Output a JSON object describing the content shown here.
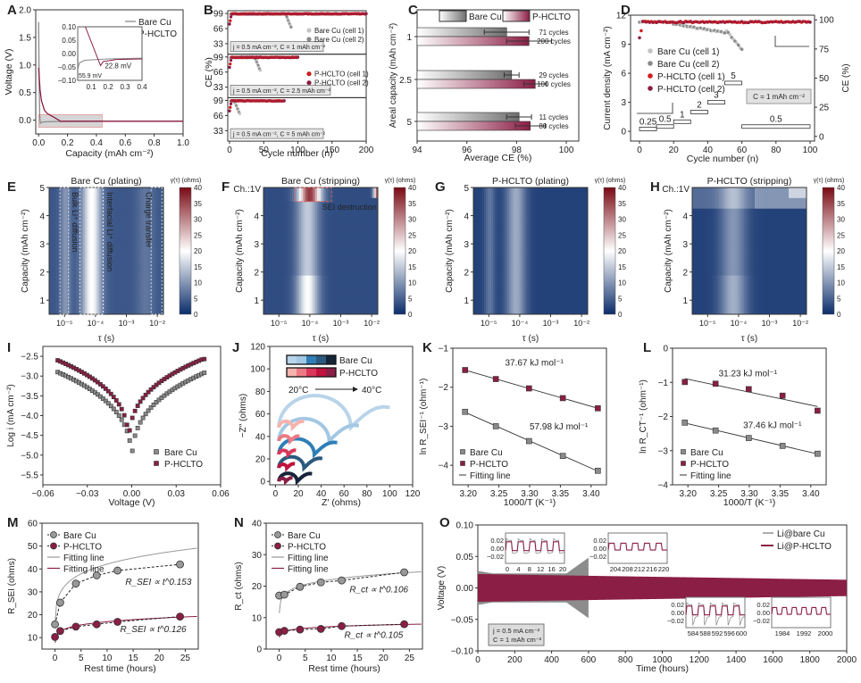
{
  "colors": {
    "bare": "#8a8a8a",
    "bare_light": "#c4c4c4",
    "hclto": "#8b1e45",
    "hclto_red": "#d01c1c",
    "axis": "#333333",
    "heat_low": "#0b2d6b",
    "heat_mid": "#ffffff",
    "heat_high": "#7a0a14"
  },
  "chart_data": [
    {
      "panel": "A",
      "type": "line",
      "xlabel": "Capacity (mAh cm⁻²)",
      "ylabel": "Voltage (V)",
      "xlim": [
        0,
        1.0
      ],
      "ylim": [
        -0.25,
        2.0
      ],
      "xticks": [
        "0.0",
        "0.2",
        "0.4",
        "0.6",
        "0.8",
        "1.0"
      ],
      "yticks": [
        "0.0",
        "0.5",
        "1.0",
        "1.5",
        "2.0"
      ],
      "legend": [
        "Bare Cu",
        "P-HCLTO"
      ],
      "series": [
        {
          "name": "Bare Cu",
          "x": [
            0,
            0.004,
            0.008,
            0.012,
            0.02,
            0.05,
            0.1,
            0.2,
            0.4,
            0.6,
            1.0
          ],
          "y": [
            1.78,
            0.6,
            0.05,
            -0.056,
            -0.04,
            -0.03,
            -0.025,
            -0.022,
            -0.02,
            -0.02,
            -0.02
          ]
        },
        {
          "name": "P-HCLTO",
          "x": [
            0,
            0.01,
            0.02,
            0.04,
            0.06,
            0.08,
            0.1,
            0.12,
            0.155,
            0.17,
            0.2,
            0.4,
            0.6,
            1.0
          ],
          "y": [
            0.95,
            0.55,
            0.35,
            0.18,
            0.12,
            0.09,
            0.06,
            0.03,
            -0.023,
            -0.02,
            -0.02,
            -0.02,
            -0.02,
            -0.02
          ]
        }
      ],
      "inset": {
        "xlim": [
          0.02,
          0.4
        ],
        "ylim": [
          -0.1,
          0.1
        ],
        "xticks": [
          "0.1",
          "0.2",
          "0.3",
          "0.4"
        ],
        "yticks": [
          "0.10",
          "0.05",
          "0.00",
          "−0.05",
          "−0.10"
        ],
        "annotations": [
          {
            "text": "22.8 mV",
            "series": "P-HCLTO"
          },
          {
            "text": "55.9 mV",
            "series": "Bare Cu"
          }
        ]
      }
    },
    {
      "panel": "B",
      "type": "scatter",
      "xlabel": "Cycle number (n)",
      "ylabel": "CE (%)",
      "xlim": [
        0,
        200
      ],
      "xticks": [
        "0",
        "50",
        "100",
        "150",
        "200"
      ],
      "yticks": [
        "33",
        "66",
        "99"
      ],
      "legend_top": [
        "Bare Cu (cell 1)",
        "Bare Cu (cell 2)"
      ],
      "legend_mid": [
        "P-HCLTO (cell 1)",
        "P-HCLTO (cell 2)"
      ],
      "subpanels": [
        {
          "condition": "j = 0.5 mA cm⁻², C = 1 mAh cm⁻²",
          "bare_end": 90,
          "hclto_end": 200
        },
        {
          "condition": "j = 0.5 mA cm⁻², C = 2.5 mAh cm⁻²",
          "bare_end": 45,
          "hclto_end": 100
        },
        {
          "condition": "j = 0.5 mA cm⁻², C = 5 mAh cm⁻²",
          "bare_end": 15,
          "hclto_end": 80
        }
      ]
    },
    {
      "panel": "C",
      "type": "bar",
      "xlabel": "Average CE (%)",
      "ylabel": "Areal capacity (mAh cm⁻²)",
      "xlim": [
        94,
        100.5
      ],
      "xticks": [
        "94",
        "96",
        "98",
        "100"
      ],
      "categories": [
        "1",
        "2.5",
        "5"
      ],
      "legend": [
        "Bare Cu",
        "P-HCLTO"
      ],
      "series": [
        {
          "name": "Bare Cu",
          "values": [
            97.6,
            97.8,
            98.1
          ],
          "errors": [
            0.9,
            0.3,
            0.5
          ],
          "labels": [
            "71 cycles",
            "29 cycles",
            "11 cycles"
          ]
        },
        {
          "name": "P-HCLTO",
          "values": [
            98.5,
            98.75,
            98.55
          ],
          "errors": [
            0.9,
            0.45,
            0.6
          ],
          "labels": [
            "200 cycles",
            "100 cycles",
            "80 cycles"
          ]
        }
      ]
    },
    {
      "panel": "D",
      "type": "line",
      "xlabel": "Cycle number (n)",
      "ylabel": "Current density (mA cm⁻²)",
      "y2label": "CE (%)",
      "xlim": [
        0,
        100
      ],
      "ylim": [
        -1,
        12
      ],
      "y2lim": [
        0,
        104
      ],
      "xticks": [
        "0",
        "20",
        "40",
        "60",
        "80",
        "100"
      ],
      "yticks": [
        "0",
        "3",
        "6",
        "9",
        "12"
      ],
      "y2ticks": [
        "0",
        "25",
        "50",
        "75",
        "100"
      ],
      "legend": [
        "Bare Cu (cell 1)",
        "Bare Cu (cell 2)",
        "P-HCLTO (cell 1)",
        "P-HCLTO (cell 2)"
      ],
      "annotation": "C = 1 mAh cm⁻²",
      "steps": [
        {
          "from": 0,
          "to": 10,
          "value": 0.25
        },
        {
          "from": 10,
          "to": 20,
          "value": 0.5
        },
        {
          "from": 20,
          "to": 30,
          "value": 1
        },
        {
          "from": 30,
          "to": 40,
          "value": 2
        },
        {
          "from": 40,
          "to": 50,
          "value": 3
        },
        {
          "from": 50,
          "to": 60,
          "value": 5
        },
        {
          "from": 60,
          "to": 100,
          "value": 0.5
        }
      ],
      "step_labels": [
        "0.25",
        "0.5",
        "1",
        "2",
        "3",
        "5",
        "0.5"
      ]
    },
    {
      "panel": "E",
      "type": "heatmap",
      "title": "Bare Cu (plating)",
      "xlabel": "τ (s)",
      "ylabel": "Capacity (mAh cm⁻²)",
      "xticks": [
        "10⁻⁵",
        "10⁻⁴",
        "10⁻³",
        "10⁻²"
      ],
      "yticks": [
        "1",
        "2",
        "3",
        "4",
        "5"
      ],
      "colorbar": {
        "label": "γ(τ) (ohms)",
        "ticks": [
          "0",
          "5",
          "10",
          "15",
          "20",
          "25",
          "30",
          "35",
          "40"
        ]
      },
      "annotations": [
        "Bulk Li⁺ diffusion",
        "Interfacial Li⁺ diffusion",
        "Charge transfer"
      ],
      "peaks": [
        {
          "logtau": -4.15,
          "value": 20
        }
      ]
    },
    {
      "panel": "F",
      "type": "heatmap",
      "title": "Bare Cu (stripping)",
      "corner": "Ch.:1V",
      "xlabel": "τ (s)",
      "ylabel": "Capacity (mAh cm⁻²)",
      "xticks": [
        "10⁻⁵",
        "10⁻⁴",
        "10⁻³",
        "10⁻²"
      ],
      "yticks": [
        "1",
        "2",
        "3",
        "4"
      ],
      "colorbar": {
        "label": "γ(τ) (ohms)",
        "ticks": [
          "0",
          "5",
          "10",
          "15",
          "20",
          "25",
          "30",
          "35",
          "40"
        ]
      },
      "annotations": [
        "SEI destruction"
      ]
    },
    {
      "panel": "G",
      "type": "heatmap",
      "title": "P-HCLTO (plating)",
      "xlabel": "τ (s)",
      "ylabel": "Capacity (mAh cm⁻²)",
      "xticks": [
        "10⁻⁵",
        "10⁻⁴",
        "10⁻³",
        "10⁻²"
      ],
      "yticks": [
        "1",
        "2",
        "3",
        "4",
        "5"
      ],
      "colorbar": {
        "label": "γ(τ) (ohms)",
        "ticks": [
          "0",
          "5",
          "10",
          "15",
          "20",
          "25",
          "30",
          "35",
          "40"
        ]
      }
    },
    {
      "panel": "H",
      "type": "heatmap",
      "title": "P-HCLTO (stripping)",
      "corner": "Ch.:1V",
      "xlabel": "τ (s)",
      "ylabel": "Capacity (mAh cm⁻²)",
      "xticks": [
        "10⁻⁵",
        "10⁻⁴",
        "10⁻³",
        "10⁻²"
      ],
      "yticks": [
        "1",
        "2",
        "3",
        "4"
      ],
      "colorbar": {
        "label": "γ(τ) (ohms)",
        "ticks": [
          "0",
          "5",
          "10",
          "15",
          "20",
          "25",
          "30",
          "35",
          "40"
        ]
      }
    },
    {
      "panel": "I",
      "type": "scatter",
      "xlabel": "Voltage (V)",
      "ylabel": "Log i (mA cm⁻²)",
      "xlim": [
        -0.06,
        0.06
      ],
      "ylim": [
        -5.75,
        -2.25
      ],
      "xticks": [
        "−0.06",
        "−0.03",
        "0.00",
        "0.03",
        "0.06"
      ],
      "yticks": [
        "−2.5",
        "−3.0",
        "−3.5",
        "−4.0",
        "−4.5",
        "−5.0",
        "−5.5"
      ],
      "legend": [
        "Bare Cu",
        "P-HCLTO"
      ],
      "series": [
        {
          "name": "Bare Cu",
          "corrosion_v": 0.0,
          "min": -5.4,
          "edge": -2.9
        },
        {
          "name": "P-HCLTO",
          "corrosion_v": -0.002,
          "min": -4.92,
          "edge": -2.57
        }
      ]
    },
    {
      "panel": "J",
      "type": "line",
      "xlabel": "Z′ (ohms)",
      "ylabel": "−Z″ (ohms)",
      "xlim": [
        -5,
        120
      ],
      "ylim": [
        -3,
        120
      ],
      "xticks": [
        "0",
        "20",
        "40",
        "60",
        "80",
        "100",
        "120"
      ],
      "yticks": [
        "0",
        "20",
        "40",
        "60",
        "80",
        "100",
        "120"
      ],
      "legend": [
        "Bare Cu",
        "P-HCLTO"
      ],
      "temp_note": [
        "20°C",
        "40°C"
      ],
      "series": [
        {
          "name": "Bare Cu 20°C",
          "offset": 48,
          "r0": 3,
          "arc_end": 66,
          "tail_end": 100,
          "color": "#b9d4ea"
        },
        {
          "name": "Bare Cu 25°C",
          "offset": 36,
          "r0": 3,
          "arc_end": 47,
          "tail_end": 73,
          "color": "#a3c7e3"
        },
        {
          "name": "Bare Cu 30°C",
          "offset": 24,
          "r0": 3,
          "arc_end": 34,
          "tail_end": 54,
          "color": "#2f7fb6"
        },
        {
          "name": "Bare Cu 35°C",
          "offset": 12,
          "r0": 3,
          "arc_end": 25,
          "tail_end": 41,
          "color": "#2b5a7e"
        },
        {
          "name": "Bare Cu 40°C",
          "offset": 0,
          "r0": 3,
          "arc_end": 19,
          "tail_end": 32,
          "color": "#16243a"
        },
        {
          "name": "P-HCLTO 20°C",
          "offset": 48,
          "r0": 3,
          "arc_end": 15,
          "tail_end": 25,
          "color": "#f6b3ad"
        },
        {
          "name": "P-HCLTO 25°C",
          "offset": 36,
          "r0": 3,
          "arc_end": 13,
          "tail_end": 21,
          "color": "#ec7a84"
        },
        {
          "name": "P-HCLTO 30°C",
          "offset": 24,
          "r0": 3,
          "arc_end": 11,
          "tail_end": 18,
          "color": "#d9385a"
        },
        {
          "name": "P-HCLTO 35°C",
          "offset": 12,
          "r0": 3,
          "arc_end": 10,
          "tail_end": 17,
          "color": "#c0123d"
        },
        {
          "name": "P-HCLTO 40°C",
          "offset": 0,
          "r0": 3,
          "arc_end": 9,
          "tail_end": 15,
          "color": "#8b1e45"
        }
      ]
    },
    {
      "panel": "K",
      "type": "scatter",
      "xlabel": "1000/T (K⁻¹)",
      "ylabel": "ln R_SEI⁻¹ (ohm⁻¹)",
      "xlim": [
        3.175,
        3.425
      ],
      "ylim": [
        -4.5,
        -1
      ],
      "xticks": [
        "3.20",
        "3.25",
        "3.30",
        "3.35",
        "3.40"
      ],
      "yticks": [
        "−1",
        "−2",
        "−3",
        "−4"
      ],
      "legend": [
        "Bare Cu",
        "P-HCLTO",
        "Fitting line"
      ],
      "x": [
        3.195,
        3.245,
        3.299,
        3.354,
        3.411
      ],
      "series": [
        {
          "name": "Bare Cu",
          "values": [
            -2.63,
            -3.0,
            -3.38,
            -3.76,
            -4.14
          ],
          "annotation": "57.98 kJ mol⁻¹"
        },
        {
          "name": "P-HCLTO",
          "values": [
            -1.56,
            -1.79,
            -2.03,
            -2.28,
            -2.54
          ],
          "annotation": "37.67 kJ mol⁻¹"
        }
      ]
    },
    {
      "panel": "L",
      "type": "scatter",
      "xlabel": "1000/T (K⁻¹)",
      "ylabel": "ln R_CT⁻¹ (ohm⁻¹)",
      "xlim": [
        3.175,
        3.425
      ],
      "ylim": [
        -4,
        0
      ],
      "xticks": [
        "3.20",
        "3.25",
        "3.30",
        "3.35",
        "3.40"
      ],
      "yticks": [
        "0",
        "−1",
        "−2",
        "−3",
        "−4"
      ],
      "legend": [
        "Bare Cu",
        "P-HCLTO",
        "Fitting line"
      ],
      "x": [
        3.195,
        3.245,
        3.299,
        3.354,
        3.411
      ],
      "series": [
        {
          "name": "Bare Cu",
          "values": [
            -2.18,
            -2.41,
            -2.63,
            -2.86,
            -3.09
          ],
          "annotation": "37.46 kJ mol⁻¹"
        },
        {
          "name": "P-HCLTO",
          "values": [
            -0.99,
            -1.04,
            -1.2,
            -1.39,
            -1.83
          ],
          "annotation": "31.23 kJ mol⁻¹"
        }
      ]
    },
    {
      "panel": "M",
      "type": "line",
      "xlabel": "Rest time (hours)",
      "ylabel": "R_SEI (ohms)",
      "xlim": [
        -2.5,
        27.5
      ],
      "ylim": [
        5,
        60
      ],
      "xticks": [
        "0",
        "5",
        "10",
        "15",
        "20",
        "25"
      ],
      "yticks": [
        "10",
        "20",
        "30",
        "40",
        "50",
        "60"
      ],
      "legend": [
        "Bare Cu",
        "P-HCLTO",
        "Fitting line",
        "Fitting line"
      ],
      "x": [
        0,
        1,
        4,
        8,
        12,
        24
      ],
      "series": [
        {
          "name": "Bare Cu",
          "values": [
            15.8,
            25.3,
            33.6,
            37.2,
            39.3,
            42
          ],
          "fit_a": 29.6,
          "fit_exp": 0.153,
          "annotation": "R_SEI ∝ t^0.153"
        },
        {
          "name": "P-HCLTO",
          "values": [
            10.3,
            12.9,
            14.8,
            15.8,
            16.9,
            19.2
          ],
          "fit_a": 12.7,
          "fit_exp": 0.126,
          "annotation": "R_SEI ∝ t^0.126"
        }
      ]
    },
    {
      "panel": "N",
      "type": "line",
      "xlabel": "Rest time (hours)",
      "ylabel": "R_ct (ohms)",
      "xlap": null,
      "xlim": [
        -2.5,
        27.5
      ],
      "ylim": [
        0,
        40
      ],
      "xticks": [
        "0",
        "5",
        "10",
        "15",
        "20",
        "25"
      ],
      "yticks": [
        "0",
        "10",
        "20",
        "30",
        "40"
      ],
      "legend": [
        "Bare Cu",
        "P-HCLTO",
        "Fitting line",
        "Fitting line"
      ],
      "x": [
        0,
        1,
        4,
        8,
        12,
        24
      ],
      "series": [
        {
          "name": "Bare Cu",
          "values": [
            17,
            17.3,
            19.8,
            21.2,
            21.8,
            24.4
          ],
          "fit_a": 17.3,
          "fit_exp": 0.106,
          "annotation": "R_ct ∝ t^0.106"
        },
        {
          "name": "P-HCLTO",
          "values": [
            5.4,
            5.8,
            6.2,
            6.4,
            7.3,
            7.9
          ],
          "fit_a": 5.6,
          "fit_exp": 0.105,
          "annotation": "R_ct ∝ t^0.105"
        }
      ]
    },
    {
      "panel": "O",
      "type": "area",
      "xlabel": "Time (hours)",
      "ylabel": "Voltage (V)",
      "xlim": [
        0,
        2000
      ],
      "ylim": [
        -0.1,
        0.1
      ],
      "xticks": [
        "0",
        "200",
        "400",
        "600",
        "800",
        "1000",
        "1200",
        "1400",
        "1600",
        "1800",
        "2000"
      ],
      "yticks": [
        "0.10",
        "0.05",
        "0.00",
        "−0.05",
        "−0.10"
      ],
      "legend": [
        "Li@bare Cu",
        "Li@P-HCLTO"
      ],
      "conditions": [
        "j = 0.5 mA cm⁻²",
        "C = 1 mAh cm⁻²"
      ],
      "series": [
        {
          "name": "Li@bare Cu",
          "end": 600,
          "amplitude_start": 0.027,
          "amplitude_mid": 0.023,
          "amplitude_end": 0.05
        },
        {
          "name": "Li@P-HCLTO",
          "end": 2000,
          "amplitude_start": 0.022,
          "amplitude_end": 0.012
        }
      ],
      "insets": [
        {
          "xticks": [
            "0",
            "4",
            "8",
            "12",
            "16",
            "20"
          ],
          "yticks": [
            "0.02",
            "0.00",
            "−0.02"
          ]
        },
        {
          "xticks": [
            "204",
            "208",
            "212",
            "216",
            "220"
          ],
          "yticks": [
            "0.02",
            "0.00",
            "−0.02"
          ]
        },
        {
          "xticks": [
            "584",
            "588",
            "592",
            "596",
            "600"
          ],
          "yticks": [
            "0.02",
            "0.00",
            "−0.02"
          ]
        },
        {
          "xticks": [
            "1984",
            "1992",
            "2000"
          ],
          "yticks": [
            "0.02",
            "0.00",
            "−0.02"
          ]
        }
      ]
    }
  ]
}
